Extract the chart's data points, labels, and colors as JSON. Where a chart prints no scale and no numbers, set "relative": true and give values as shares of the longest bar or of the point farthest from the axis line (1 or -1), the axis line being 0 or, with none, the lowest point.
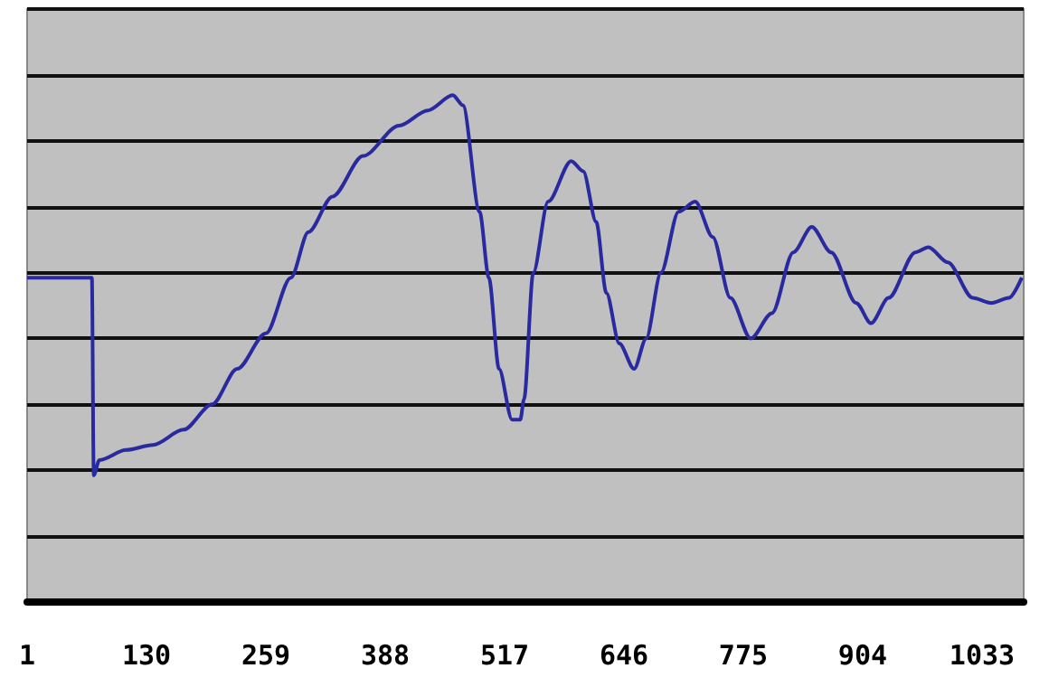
{
  "chart_data": {
    "type": "line",
    "relative": true,
    "grid": "y",
    "marker": "none",
    "line_style": "solid",
    "xlim": [
      1,
      1078
    ],
    "xticks": [
      1,
      130,
      259,
      388,
      517,
      646,
      775,
      904,
      1033
    ],
    "series": [
      {
        "color": "#2a2aa0",
        "x": [
          1,
          71,
          73,
          79,
          108,
          137,
          170,
          201,
          228,
          259,
          286,
          305,
          331,
          364,
          403,
          434,
          461,
          472,
          490,
          500,
          511,
          525,
          534,
          538,
          548,
          564,
          589,
          602,
          616,
          627,
          641,
          657,
          670,
          686,
          705,
          723,
          742,
          761,
          783,
          806,
          829,
          849,
          870,
          897,
          913,
          932,
          961,
          975,
          996,
          1023,
          1043,
          1062,
          1076
        ],
        "values": [
          0.64,
          0.64,
          0.25,
          0.28,
          0.3,
          0.31,
          0.34,
          0.39,
          0.46,
          0.53,
          0.64,
          0.73,
          0.8,
          0.88,
          0.94,
          0.97,
          1,
          0.98,
          0.77,
          0.64,
          0.46,
          0.36,
          0.36,
          0.4,
          0.65,
          0.79,
          0.87,
          0.85,
          0.75,
          0.61,
          0.51,
          0.46,
          0.52,
          0.65,
          0.77,
          0.79,
          0.72,
          0.6,
          0.52,
          0.57,
          0.69,
          0.74,
          0.69,
          0.59,
          0.55,
          0.6,
          0.69,
          0.7,
          0.67,
          0.6,
          0.59,
          0.6,
          0.64
        ]
      }
    ]
  }
}
